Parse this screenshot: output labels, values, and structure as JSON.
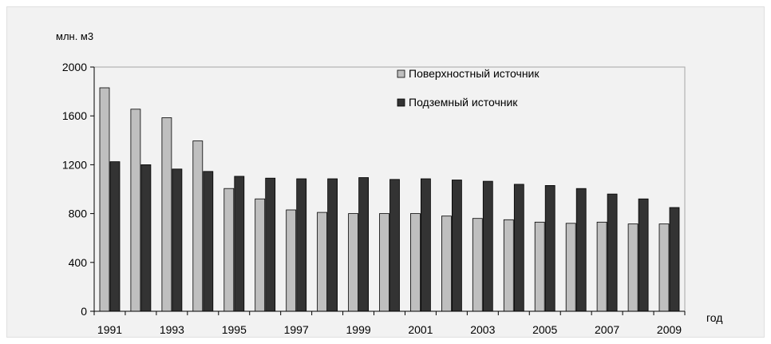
{
  "chart_data": {
    "type": "bar",
    "ylabel": "млн. м3",
    "xlabel": "год",
    "ylim": [
      0,
      2000
    ],
    "yticks": [
      0,
      400,
      800,
      1200,
      1600,
      2000
    ],
    "categories": [
      "1991",
      "1992",
      "1993",
      "1994",
      "1995",
      "1996",
      "1997",
      "1998",
      "1999",
      "2000",
      "2001",
      "2002",
      "2003",
      "2004",
      "2005",
      "2006",
      "2007",
      "2008",
      "2009"
    ],
    "x_tick_labels": [
      "1991",
      "1993",
      "1995",
      "1997",
      "1999",
      "2001",
      "2003",
      "2005",
      "2007",
      "2009"
    ],
    "series": [
      {
        "name": "Поверхностный источник",
        "color": "#bfbfbf",
        "values": [
          1830,
          1655,
          1585,
          1395,
          1005,
          920,
          830,
          810,
          800,
          800,
          800,
          780,
          760,
          750,
          730,
          720,
          730,
          715,
          715
        ]
      },
      {
        "name": "Подземный источник",
        "color": "#333333",
        "values": [
          1225,
          1200,
          1165,
          1145,
          1105,
          1090,
          1085,
          1085,
          1095,
          1080,
          1085,
          1075,
          1065,
          1040,
          1030,
          1005,
          960,
          920,
          850
        ]
      }
    ],
    "legend_position": "top-right",
    "grid": false
  }
}
